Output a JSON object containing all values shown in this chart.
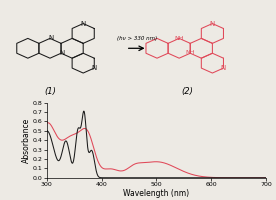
{
  "background_color": "#edeae4",
  "xlabel": "Wavelength (nm)",
  "ylabel": "Absorbance",
  "xlim": [
    300,
    700
  ],
  "ylim": [
    0,
    0.8
  ],
  "yticks": [
    0,
    0.1,
    0.2,
    0.3,
    0.4,
    0.5,
    0.6,
    0.7,
    0.8
  ],
  "xticks": [
    300,
    400,
    500,
    600,
    700
  ],
  "black_color": "#1a1a1a",
  "red_color": "#e04858",
  "label1": "(1)",
  "label2": "(2)",
  "arrow_text": "(hν > 330 nm)",
  "compound1_color": "#1a1a1a",
  "compound2_color": "#e04858"
}
